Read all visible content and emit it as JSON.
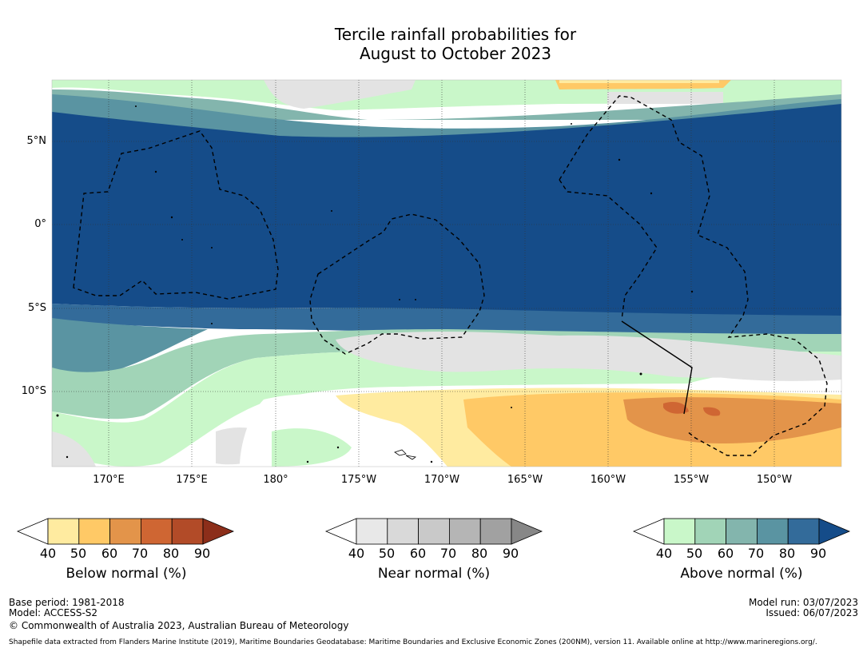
{
  "title_line1": "Tercile rainfall probabilities for",
  "title_line2": "August to October 2023",
  "latitude_labels": [
    "5°N",
    "0°",
    "5°S",
    "10°S"
  ],
  "longitude_labels": [
    "170°E",
    "175°E",
    "180°",
    "175°W",
    "170°W",
    "165°W",
    "160°W",
    "155°W",
    "150°W"
  ],
  "colorbars": [
    {
      "title": "Below normal (%)",
      "ticks": [
        "40",
        "50",
        "60",
        "70",
        "80",
        "90"
      ],
      "colors": [
        "#ffffff",
        "#ffeba0",
        "#ffc966",
        "#e3944a",
        "#cf6633",
        "#b24b28",
        "#8c2e1a"
      ]
    },
    {
      "title": "Near normal (%)",
      "ticks": [
        "40",
        "50",
        "60",
        "70",
        "80",
        "90"
      ],
      "colors": [
        "#ffffff",
        "#e8e8e8",
        "#d9d9d9",
        "#c9c9c9",
        "#b5b5b5",
        "#a1a1a1",
        "#878787"
      ]
    },
    {
      "title": "Above normal (%)",
      "ticks": [
        "40",
        "50",
        "60",
        "70",
        "80",
        "90"
      ],
      "colors": [
        "#ffffff",
        "#c9f7c9",
        "#a1d4b7",
        "#83b5ad",
        "#5a94a2",
        "#336b9a",
        "#154c89"
      ]
    }
  ],
  "footer_left": {
    "base_period": "Base period: 1981-2018",
    "model": "Model: ACCESS-S2",
    "copyright": "© Commonwealth of Australia 2023, Australian Bureau of Meteorology"
  },
  "footer_right": {
    "model_run": "Model run: 03/07/2023",
    "issued": "Issued: 06/07/2023"
  },
  "source_note": "Shapefile data extracted from Flanders Marine Institute (2019), Maritime Boundaries Geodatabase: Maritime Boundaries and Exclusive Economic Zones (200NM), version 11. Available online at http://www.marineregions.org/."
}
